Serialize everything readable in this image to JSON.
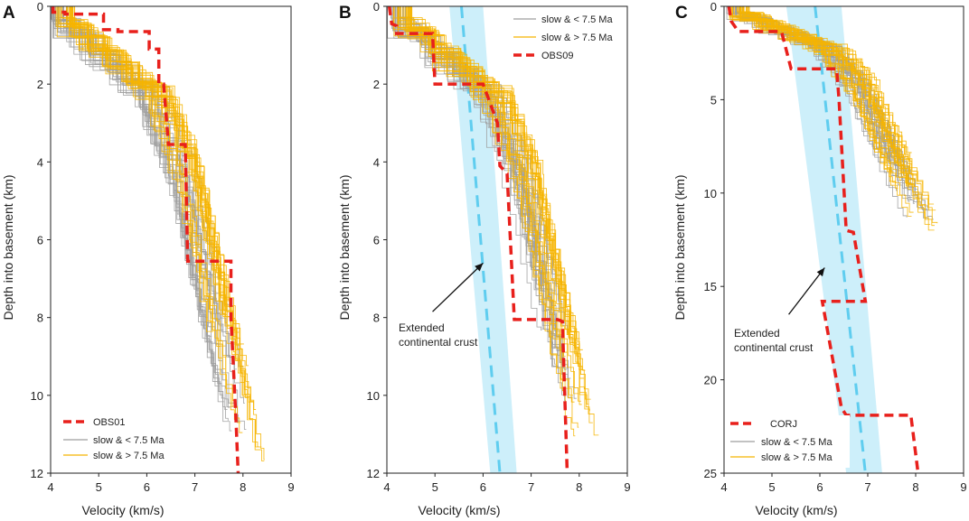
{
  "colors": {
    "slow_young": "#9e9e9e",
    "slow_old": "#f5b400",
    "profile": "#e8201c",
    "crust_band": "#cdeffa",
    "crust_line": "#5fcdef",
    "axis": "#222222"
  },
  "chart_data": [
    {
      "type": "line",
      "panel_label": "A",
      "xlabel": "Velocity (km/s)",
      "ylabel": "Depth into basement (km)",
      "xlim": [
        4,
        9
      ],
      "ylim": [
        12,
        0
      ],
      "xticks": [
        "4",
        "5",
        "6",
        "7",
        "8",
        "9"
      ],
      "yticks": [
        "0",
        "2",
        "4",
        "6",
        "8",
        "10",
        "12"
      ],
      "legend": {
        "position": "lower-left",
        "entries": [
          "OBS01",
          "slow & < 7.5 Ma",
          "slow & > 7.5 Ma"
        ]
      },
      "profile": {
        "name": "OBS01",
        "points": [
          [
            4.05,
            0.0
          ],
          [
            4.05,
            0.15
          ],
          [
            4.3,
            0.15
          ],
          [
            4.3,
            0.2
          ],
          [
            5.1,
            0.2
          ],
          [
            5.1,
            0.6
          ],
          [
            5.4,
            0.6
          ],
          [
            5.4,
            0.65
          ],
          [
            6.05,
            0.65
          ],
          [
            6.05,
            1.1
          ],
          [
            6.25,
            1.1
          ],
          [
            6.25,
            2.0
          ],
          [
            6.35,
            2.0
          ],
          [
            6.45,
            3.55
          ],
          [
            6.8,
            3.55
          ],
          [
            6.85,
            6.55
          ],
          [
            7.75,
            6.55
          ],
          [
            7.75,
            8.0
          ],
          [
            7.85,
            10.5
          ],
          [
            7.9,
            12.0
          ]
        ]
      },
      "bundles": {
        "young_count": 28,
        "old_count": 28,
        "max_depth_young": 11.0,
        "max_depth_old": 11.8
      },
      "annotation": null,
      "crust_band": null
    },
    {
      "type": "line",
      "panel_label": "B",
      "xlabel": "Velocity (km/s)",
      "ylabel": "Depth into basement (km)",
      "xlim": [
        4,
        9
      ],
      "ylim": [
        12,
        0
      ],
      "xticks": [
        "4",
        "5",
        "6",
        "7",
        "8",
        "9"
      ],
      "yticks": [
        "0",
        "2",
        "4",
        "6",
        "8",
        "10",
        "12"
      ],
      "legend": {
        "position": "top-right",
        "entries": [
          "slow & < 7.5 Ma",
          "slow & > 7.5 Ma",
          "OBS09"
        ]
      },
      "profile": {
        "name": "OBS09",
        "points": [
          [
            4.05,
            0.0
          ],
          [
            4.1,
            0.45
          ],
          [
            4.2,
            0.5
          ],
          [
            4.2,
            0.7
          ],
          [
            4.95,
            0.7
          ],
          [
            5.0,
            2.0
          ],
          [
            6.0,
            2.0
          ],
          [
            6.3,
            3.0
          ],
          [
            6.35,
            4.1
          ],
          [
            6.5,
            4.3
          ],
          [
            6.65,
            8.05
          ],
          [
            7.55,
            8.05
          ],
          [
            7.65,
            8.1
          ],
          [
            7.75,
            12.0
          ]
        ]
      },
      "crust_band": {
        "depths": [
          0,
          12
        ],
        "left": [
          5.3,
          6.15
        ],
        "right": [
          6.0,
          6.7
        ],
        "center": [
          5.55,
          6.35
        ]
      },
      "annotation": {
        "lines": [
          "Extended",
          "continental crust"
        ],
        "arrow_to": [
          6.0,
          6.6
        ],
        "arrow_from": [
          4.95,
          7.85
        ]
      },
      "bundles": {
        "young_count": 28,
        "old_count": 28,
        "max_depth_young": 10.2,
        "max_depth_old": 11.8
      }
    },
    {
      "type": "line",
      "panel_label": "C",
      "xlabel": "Velocity (km/s)",
      "ylabel": "Depth into basement (km)",
      "xlim": [
        4,
        9
      ],
      "ylim": [
        25,
        0
      ],
      "xticks": [
        "4",
        "5",
        "6",
        "7",
        "8",
        "9"
      ],
      "yticks": [
        "0",
        "5",
        "10",
        "15",
        "20",
        "25"
      ],
      "legend": {
        "position": "lower-left",
        "entries": [
          "CORJ",
          "slow & < 7.5 Ma",
          "slow & > 7.5 Ma"
        ]
      },
      "profile": {
        "name": "CORJ",
        "points": [
          [
            4.1,
            0.0
          ],
          [
            4.15,
            0.8
          ],
          [
            4.3,
            1.35
          ],
          [
            5.2,
            1.35
          ],
          [
            5.4,
            3.35
          ],
          [
            6.35,
            3.35
          ],
          [
            6.4,
            5.0
          ],
          [
            6.55,
            12.0
          ],
          [
            6.7,
            12.1
          ],
          [
            6.95,
            15.8
          ],
          [
            6.05,
            15.8
          ],
          [
            6.45,
            21.5
          ],
          [
            6.55,
            21.9
          ],
          [
            7.9,
            21.9
          ],
          [
            8.05,
            25.0
          ]
        ]
      },
      "crust_band": {
        "depths": [
          0,
          25
        ],
        "left": [
          5.3,
          6.55
        ],
        "right": [
          6.45,
          7.3
        ],
        "center": [
          5.9,
          6.95
        ]
      },
      "annotation": {
        "lines": [
          "Extended",
          "continental crust"
        ],
        "arrow_to": [
          6.1,
          14.0
        ],
        "arrow_from": [
          5.35,
          16.5
        ]
      },
      "bundles": {
        "young_count": 28,
        "old_count": 28,
        "max_depth_young": 11.5,
        "max_depth_old": 12.0
      }
    }
  ]
}
